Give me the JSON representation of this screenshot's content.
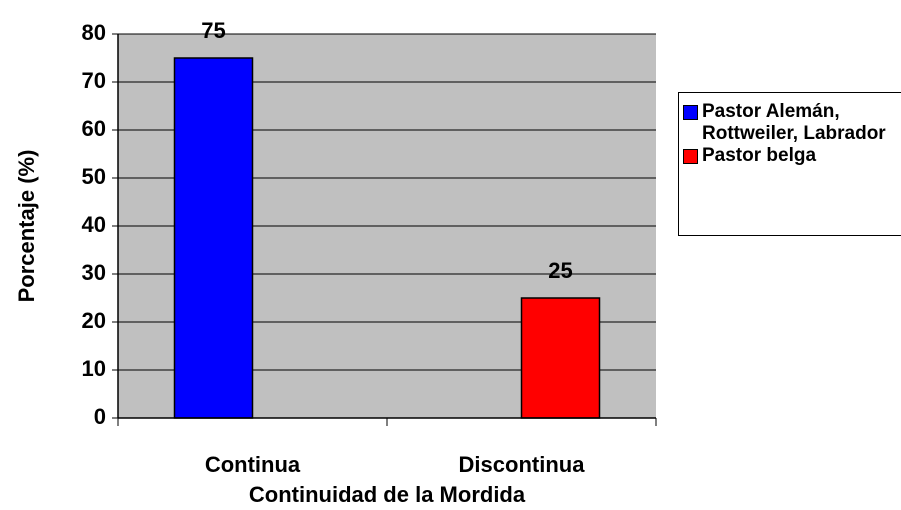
{
  "chart_data": {
    "type": "bar",
    "x_label": "Continuidad de la Mordida",
    "y_label": "Porcentaje (%)",
    "categories": [
      "Continua",
      "Discontinua"
    ],
    "series": [
      {
        "name": "Pastor Alemán, Rottweiler, Labrador",
        "color": "#0000ff",
        "values": [
          75,
          null
        ]
      },
      {
        "name": "Pastor belga",
        "color": "#ff0000",
        "values": [
          null,
          25
        ]
      }
    ],
    "ylim": [
      0,
      80
    ],
    "yticks": [
      0,
      10,
      20,
      30,
      40,
      50,
      60,
      70,
      80
    ],
    "grid": true,
    "legend": "right"
  }
}
